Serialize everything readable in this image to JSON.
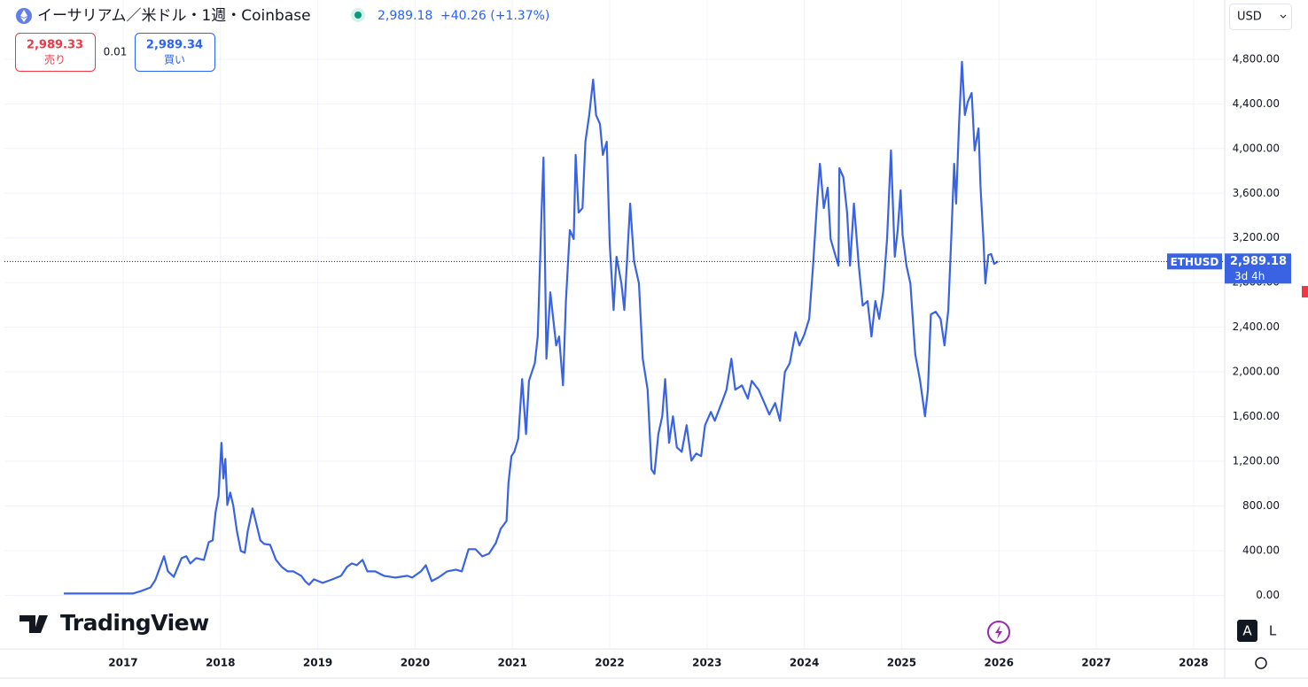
{
  "ui": {
    "symbol_title": "イーサリアム／米ドル・1週・Coinbase",
    "price": "2,989.18",
    "change": "+40.26 (+1.37%)",
    "sell_price": "2,989.33",
    "sell_label": "売り",
    "spread": "0.01",
    "buy_price": "2,989.34",
    "buy_label": "買い",
    "currency": "USD",
    "badge_symbol": "ETHUSD",
    "countdown": "3d 4h",
    "logo": "TradingView",
    "btn_auto": "A",
    "btn_log": "L"
  },
  "chart_data": {
    "type": "line",
    "color": "#3a63e3",
    "grid": true,
    "x": [
      2016.39,
      2017.1,
      2017.19,
      2017.28,
      2017.33,
      2017.42,
      2017.46,
      2017.52,
      2017.6,
      2017.65,
      2017.69,
      2017.75,
      2017.83,
      2017.88,
      2017.92,
      2017.95,
      2017.98,
      2018.01,
      2018.03,
      2018.05,
      2018.07,
      2018.1,
      2018.13,
      2018.17,
      2018.21,
      2018.25,
      2018.28,
      2018.33,
      2018.37,
      2018.41,
      2018.45,
      2018.51,
      2018.57,
      2018.63,
      2018.69,
      2018.75,
      2018.83,
      2018.87,
      2018.91,
      2018.96,
      2019.05,
      2019.15,
      2019.24,
      2019.3,
      2019.35,
      2019.4,
      2019.46,
      2019.51,
      2019.59,
      2019.68,
      2019.8,
      2019.92,
      2019.97,
      2020.06,
      2020.11,
      2020.17,
      2020.24,
      2020.33,
      2020.42,
      2020.48,
      2020.55,
      2020.62,
      2020.69,
      2020.76,
      2020.83,
      2020.88,
      2020.94,
      2020.96,
      2020.99,
      2021.02,
      2021.06,
      2021.1,
      2021.14,
      2021.17,
      2021.23,
      2021.26,
      2021.3,
      2021.32,
      2021.35,
      2021.39,
      2021.45,
      2021.48,
      2021.52,
      2021.55,
      2021.59,
      2021.63,
      2021.65,
      2021.68,
      2021.72,
      2021.75,
      2021.79,
      2021.83,
      2021.86,
      2021.9,
      2021.93,
      2021.97,
      2022.0,
      2022.04,
      2022.07,
      2022.12,
      2022.15,
      2022.21,
      2022.25,
      2022.3,
      2022.34,
      2022.39,
      2022.43,
      2022.46,
      2022.5,
      2022.54,
      2022.57,
      2022.61,
      2022.65,
      2022.69,
      2022.74,
      2022.79,
      2022.84,
      2022.89,
      2022.94,
      2022.98,
      2023.04,
      2023.08,
      2023.15,
      2023.2,
      2023.25,
      2023.29,
      2023.36,
      2023.42,
      2023.46,
      2023.53,
      2023.59,
      2023.64,
      2023.7,
      2023.75,
      2023.8,
      2023.85,
      2023.91,
      2023.95,
      2024.0,
      2024.05,
      2024.09,
      2024.13,
      2024.16,
      2024.2,
      2024.24,
      2024.27,
      2024.31,
      2024.35,
      2024.36,
      2024.4,
      2024.44,
      2024.47,
      2024.51,
      2024.56,
      2024.6,
      2024.65,
      2024.69,
      2024.73,
      2024.77,
      2024.81,
      2024.85,
      2024.89,
      2024.93,
      2024.96,
      2024.99,
      2025.01,
      2025.05,
      2025.09,
      2025.14,
      2025.19,
      2025.24,
      2025.27,
      2025.3,
      2025.35,
      2025.4,
      2025.44,
      2025.48,
      2025.51,
      2025.54,
      2025.56,
      2025.59,
      2025.62,
      2025.65,
      2025.68,
      2025.72,
      2025.75,
      2025.79,
      2025.81,
      2025.84,
      2025.86,
      2025.89,
      2025.92,
      2025.95,
      2025.99
    ],
    "values": [
      16,
      16,
      40,
      70,
      135,
      350,
      215,
      165,
      333,
      350,
      285,
      333,
      317,
      476,
      492,
      746,
      889,
      1365,
      1047,
      1222,
      809,
      920,
      809,
      571,
      397,
      381,
      571,
      778,
      635,
      492,
      460,
      452,
      317,
      254,
      214,
      214,
      175,
      127,
      95,
      143,
      111,
      143,
      175,
      254,
      286,
      270,
      317,
      214,
      214,
      175,
      159,
      175,
      159,
      214,
      270,
      127,
      159,
      214,
      230,
      214,
      413,
      413,
      349,
      373,
      468,
      595,
      666,
      1008,
      1246,
      1285,
      1404,
      1936,
      1444,
      1920,
      2079,
      2317,
      3427,
      3919,
      2118,
      2713,
      2237,
      2317,
      1880,
      2634,
      3269,
      3190,
      3943,
      3427,
      3467,
      4062,
      4300,
      4617,
      4300,
      4221,
      3943,
      4062,
      3150,
      2555,
      3031,
      2793,
      2555,
      3507,
      2991,
      2793,
      2118,
      1841,
      1127,
      1087,
      1444,
      1603,
      1936,
      1365,
      1603,
      1325,
      1285,
      1523,
      1206,
      1269,
      1246,
      1523,
      1642,
      1563,
      1722,
      1841,
      2118,
      1841,
      1880,
      1761,
      1920,
      1841,
      1722,
      1619,
      1722,
      1563,
      1999,
      2079,
      2356,
      2237,
      2333,
      2475,
      2951,
      3507,
      3864,
      3467,
      3650,
      3190,
      3070,
      2951,
      3824,
      3745,
      3427,
      2951,
      3507,
      2951,
      2594,
      2634,
      2317,
      2634,
      2475,
      2713,
      3190,
      3983,
      3031,
      3269,
      3626,
      3229,
      2951,
      2793,
      2158,
      1920,
      1603,
      1841,
      2515,
      2539,
      2475,
      2237,
      2555,
      3190,
      3864,
      3507,
      4221,
      4776,
      4300,
      4419,
      4498,
      3983,
      4181,
      3665,
      3190,
      2793,
      3047,
      3055,
      2967,
      2989.18
    ],
    "xlim": [
      2015.78,
      2028.32
    ],
    "xticks": [
      2017,
      2018,
      2019,
      2020,
      2021,
      2022,
      2023,
      2024,
      2025,
      2026,
      2027,
      2028
    ],
    "ylim": [
      -480,
      5330
    ],
    "yticks": [
      {
        "value": 0,
        "label": "0.00"
      },
      {
        "value": 400,
        "label": "400.00"
      },
      {
        "value": 800,
        "label": "800.00"
      },
      {
        "value": 1200,
        "label": "1,200.00"
      },
      {
        "value": 1600,
        "label": "1,600.00"
      },
      {
        "value": 2000,
        "label": "2,000.00"
      },
      {
        "value": 2400,
        "label": "2,400.00"
      },
      {
        "value": 2800,
        "label": "2,800.00"
      },
      {
        "value": 3200,
        "label": "3,200.00"
      },
      {
        "value": 3600,
        "label": "3,600.00"
      },
      {
        "value": 4000,
        "label": "4,000.00"
      },
      {
        "value": 4400,
        "label": "4,400.00"
      },
      {
        "value": 4800,
        "label": "4,800.00"
      }
    ],
    "price_line": {
      "value": 2989.18,
      "label": "2,989.18"
    }
  }
}
